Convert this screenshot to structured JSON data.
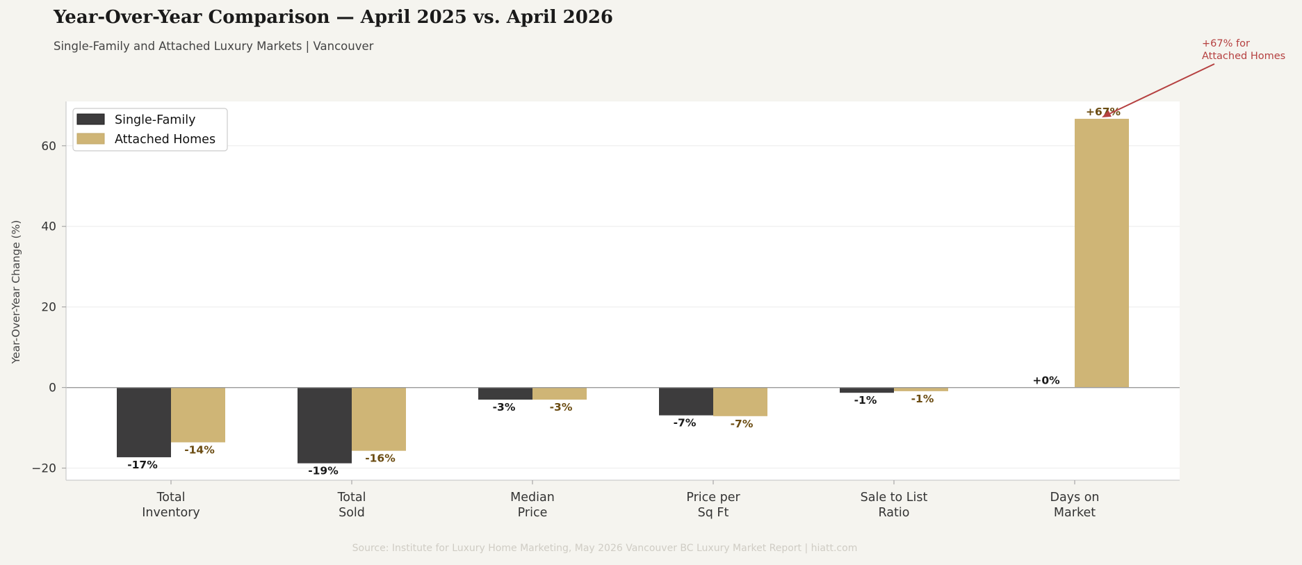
{
  "title": "Year-Over-Year Comparison — April 2025 vs. April 2026",
  "subtitle": "Single-Family and Attached Luxury Markets  |  Vancouver",
  "source": "Source: Institute for Luxury Home Marketing, May 2026 Vancouver BC Luxury Market Report  |  hiatt.com",
  "colors": {
    "single_family": "#3d3c3d",
    "attached": "#cfb576",
    "single_family_label": "#1a1a1a",
    "attached_label": "#6b4c12",
    "annotation": "#b54040",
    "plot_bg": "#ffffff",
    "page_bg": "#f5f4ef"
  },
  "chart_data": {
    "type": "bar",
    "categories": [
      [
        "Total",
        "Inventory"
      ],
      [
        "Total",
        "Sold"
      ],
      [
        "Median",
        "Price"
      ],
      [
        "Price per",
        "Sq Ft"
      ],
      [
        "Sale to List",
        "Ratio"
      ],
      [
        "Days on",
        "Market"
      ]
    ],
    "series": [
      {
        "name": "Single-Family",
        "values": [
          -17.3,
          -18.8,
          -3,
          -6.9,
          -1.3,
          0
        ],
        "labels": [
          "-17%",
          "-19%",
          "-3%",
          "-7%",
          "-1%",
          "+0%"
        ]
      },
      {
        "name": "Attached Homes",
        "values": [
          -13.6,
          -15.7,
          -3,
          -7.1,
          -0.9,
          66.7
        ],
        "labels": [
          "-14%",
          "-16%",
          "-3%",
          "-7%",
          "-1%",
          "+67%"
        ]
      }
    ],
    "xlabel": "",
    "ylabel": "Year-Over-Year Change (%)",
    "ylim": [
      -23,
      71
    ],
    "yticks": [
      -20,
      0,
      20,
      40,
      60
    ],
    "ytick_labels": [
      "−20",
      "0",
      "20",
      "40",
      "60"
    ],
    "grid": true,
    "legend": "top-left",
    "annotation": {
      "lines": [
        "+67% for",
        "Attached Homes"
      ],
      "category_index": 5,
      "series_index": 1
    }
  }
}
